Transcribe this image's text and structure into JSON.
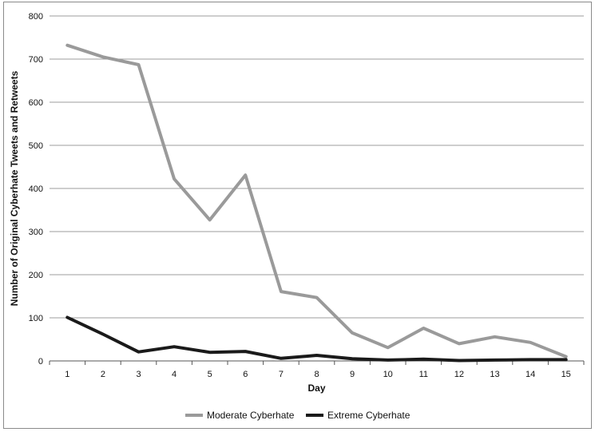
{
  "chart_data": {
    "type": "line",
    "xlabel": "Day",
    "ylabel": "Number of Original Cyberhate Tweets and Retweets",
    "categories": [
      "1",
      "2",
      "3",
      "4",
      "5",
      "6",
      "7",
      "8",
      "9",
      "10",
      "11",
      "12",
      "13",
      "14",
      "15"
    ],
    "ylim": [
      0,
      800
    ],
    "yticks": [
      0,
      100,
      200,
      300,
      400,
      500,
      600,
      700,
      800
    ],
    "grid": true,
    "legend_position": "bottom",
    "series": [
      {
        "name": "Moderate Cyberhate",
        "color": "#9a9a9a",
        "values": [
          732,
          705,
          687,
          422,
          327,
          431,
          161,
          147,
          65,
          31,
          76,
          40,
          56,
          43,
          10
        ]
      },
      {
        "name": "Extreme Cyberhate",
        "color": "#1a1a1a",
        "values": [
          101,
          62,
          21,
          33,
          20,
          22,
          6,
          13,
          5,
          2,
          4,
          1,
          2,
          3,
          3
        ]
      }
    ]
  }
}
